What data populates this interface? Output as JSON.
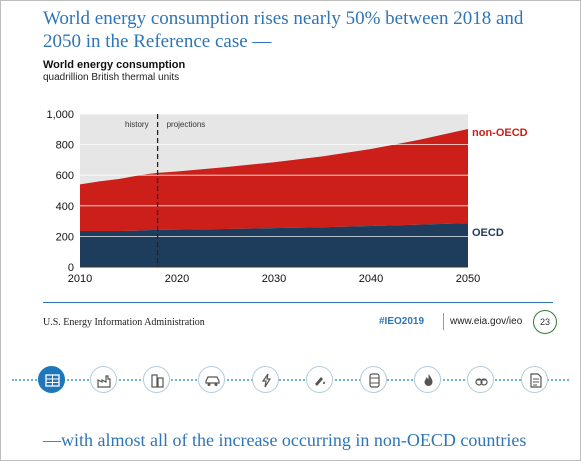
{
  "headline": "World energy consumption rises nearly 50% between 2018 and 2050 in the Reference case —",
  "caption": "—with almost all of the increase occurring in non-OECD countries",
  "footer": {
    "agency": "U.S. Energy Information Administration",
    "hashtag": "#IEO2019",
    "url": "www.eia.gov/ieo",
    "page_number": "23"
  },
  "colors": {
    "oecd": "#1e3c5c",
    "non_oecd": "#cc1f1a",
    "accent": "#2e75b6",
    "grid": "#ffffff",
    "plot_background": "#e6e6e6"
  },
  "icons": [
    "data-table-icon",
    "industry-icon",
    "buildings-icon",
    "car-icon",
    "electricity-icon",
    "petroleum-icon",
    "oil-barrel-icon",
    "natural-gas-flame-icon",
    "coal-icon",
    "document-icon"
  ],
  "chart_data": {
    "type": "area",
    "stacked": true,
    "title": "World energy consumption",
    "subtitle": "quadrillion British thermal units",
    "x": [
      2010,
      2012,
      2014,
      2016,
      2017,
      2018,
      2020,
      2025,
      2030,
      2035,
      2040,
      2045,
      2050
    ],
    "series": [
      {
        "name": "OECD",
        "values": [
          235,
          235,
          235,
          238,
          241,
          243,
          244,
          248,
          254,
          260,
          268,
          277,
          287
        ]
      },
      {
        "name": "non-OECD",
        "values": [
          305,
          325,
          340,
          360,
          367,
          372,
          380,
          405,
          431,
          463,
          503,
          555,
          615
        ]
      }
    ],
    "xlim": [
      2010,
      2050
    ],
    "ylim": [
      0,
      1000
    ],
    "xticks": [
      "2010",
      "2020",
      "2030",
      "2040",
      "2050"
    ],
    "yticks": [
      "0",
      "200",
      "400",
      "600",
      "800",
      "1,000"
    ],
    "grid": true,
    "divider": {
      "x": 2018,
      "labels": [
        "history",
        "projections"
      ]
    },
    "legend": "inline series labels at right end"
  }
}
